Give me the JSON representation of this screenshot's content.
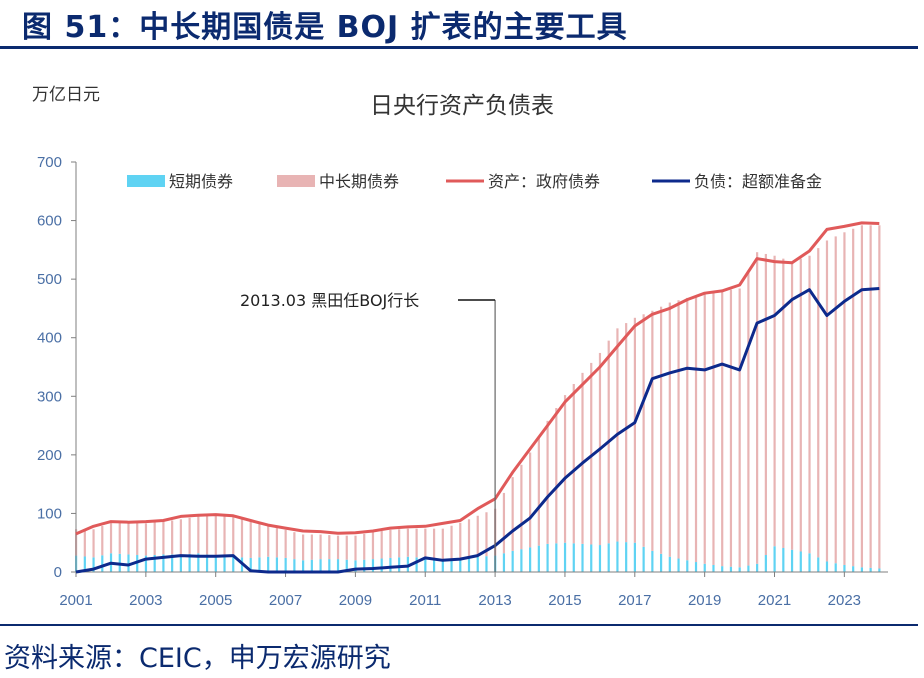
{
  "figure_title": "图 51：中长期国债是 BOJ 扩表的主要工具",
  "source_note": "资料来源：CEIC，申万宏源研究",
  "colors": {
    "brand": "#0b2a6f",
    "short_term": "#5fd3f3",
    "mid_long_term": "#e8b4b4",
    "assets_line": "#e05a5a",
    "liabilities_line": "#0d2a8c",
    "axis_text": "#4a6fa5"
  },
  "chart_data": {
    "type": "bar",
    "title": "日央行资产负债表",
    "ylabel": "万亿日元",
    "xlabel": "",
    "ylim": [
      0,
      700
    ],
    "yticks": [
      0,
      100,
      200,
      300,
      400,
      500,
      600,
      700
    ],
    "xlim": [
      2001,
      2024.25
    ],
    "xticks": [
      2001,
      2003,
      2005,
      2007,
      2009,
      2011,
      2013,
      2015,
      2017,
      2019,
      2021,
      2023
    ],
    "grid": false,
    "legend_position": "top",
    "annotation": {
      "text": "2013.03 黑田任BOJ行长",
      "x": 2013.0
    },
    "x": [
      2001.0,
      2001.5,
      2002.0,
      2002.5,
      2003.0,
      2003.5,
      2004.0,
      2004.5,
      2005.0,
      2005.5,
      2006.0,
      2006.5,
      2007.0,
      2007.5,
      2008.0,
      2008.5,
      2009.0,
      2009.5,
      2010.0,
      2010.5,
      2011.0,
      2011.5,
      2012.0,
      2012.5,
      2013.0,
      2013.5,
      2014.0,
      2014.5,
      2015.0,
      2015.5,
      2016.0,
      2016.5,
      2017.0,
      2017.5,
      2018.0,
      2018.5,
      2019.0,
      2019.5,
      2020.0,
      2020.5,
      2021.0,
      2021.5,
      2022.0,
      2022.5,
      2023.0,
      2023.5,
      2024.0
    ],
    "series": [
      {
        "name": "短期债券",
        "kind": "bar",
        "values": [
          28,
          25,
          32,
          30,
          28,
          30,
          30,
          32,
          28,
          26,
          24,
          26,
          24,
          20,
          22,
          22,
          20,
          22,
          24,
          26,
          24,
          22,
          24,
          26,
          28,
          36,
          42,
          48,
          50,
          48,
          46,
          52,
          50,
          36,
          26,
          20,
          14,
          10,
          8,
          14,
          44,
          38,
          32,
          18,
          12,
          8,
          6
        ]
      },
      {
        "name": "中长期债券",
        "kind": "bar",
        "values": [
          45,
          48,
          52,
          54,
          55,
          56,
          60,
          63,
          68,
          70,
          62,
          52,
          48,
          44,
          42,
          40,
          42,
          46,
          48,
          48,
          50,
          52,
          60,
          70,
          80,
          126,
          162,
          210,
          252,
          292,
          328,
          364,
          384,
          410,
          434,
          448,
          462,
          470,
          476,
          532,
          496,
          492,
          508,
          548,
          568,
          584,
          586
        ]
      },
      {
        "name": "资产：政府债券",
        "kind": "line",
        "values": [
          65,
          78,
          86,
          85,
          86,
          88,
          95,
          97,
          98,
          96,
          88,
          80,
          75,
          70,
          69,
          66,
          67,
          70,
          75,
          77,
          78,
          83,
          88,
          108,
          125,
          170,
          210,
          250,
          290,
          320,
          350,
          385,
          420,
          440,
          450,
          465,
          476,
          480,
          490,
          535,
          530,
          528,
          548,
          585,
          590,
          596,
          595
        ]
      },
      {
        "name": "负债：超额准备金",
        "kind": "line",
        "values": [
          0,
          5,
          15,
          12,
          22,
          25,
          28,
          27,
          27,
          28,
          2,
          0,
          0,
          0,
          0,
          0,
          5,
          6,
          8,
          10,
          24,
          20,
          22,
          28,
          45,
          70,
          92,
          128,
          160,
          186,
          210,
          235,
          255,
          330,
          340,
          348,
          345,
          355,
          345,
          425,
          438,
          465,
          482,
          438,
          462,
          482,
          484
        ]
      }
    ]
  }
}
